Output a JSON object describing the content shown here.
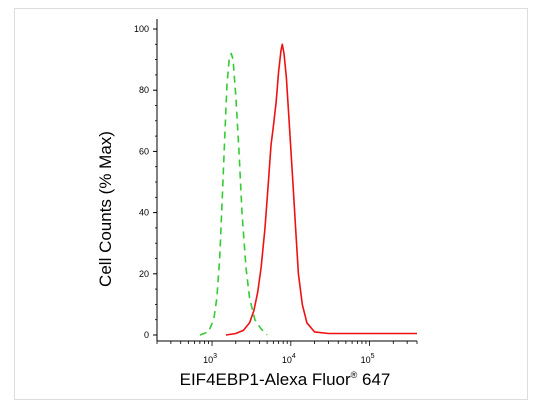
{
  "chart_data": {
    "type": "line",
    "xlabel": "EIF4EBP1-Alexa Fluor",
    "xlabel_sup": "®",
    "xlabel_suffix": " 647",
    "ylabel": "Cell Counts (% Max)",
    "ylim": [
      0,
      100
    ],
    "yticks": [
      "0",
      "20",
      "40",
      "60",
      "80",
      "100"
    ],
    "xscale": "log",
    "xticks": [
      {
        "base": "10",
        "exp": "3",
        "value": 1000
      },
      {
        "base": "10",
        "exp": "4",
        "value": 10000
      },
      {
        "base": "10",
        "exp": "5",
        "value": 100000
      }
    ],
    "grid": false,
    "series": [
      {
        "style": "dashed",
        "color": "#33cc33",
        "points": [
          [
            700,
            0
          ],
          [
            900,
            1
          ],
          [
            1050,
            5
          ],
          [
            1150,
            12
          ],
          [
            1250,
            25
          ],
          [
            1350,
            45
          ],
          [
            1450,
            65
          ],
          [
            1550,
            82
          ],
          [
            1650,
            90
          ],
          [
            1750,
            92
          ],
          [
            1850,
            90
          ],
          [
            2000,
            78
          ],
          [
            2200,
            60
          ],
          [
            2400,
            40
          ],
          [
            2700,
            22
          ],
          [
            3000,
            12
          ],
          [
            3500,
            5
          ],
          [
            4200,
            2
          ],
          [
            5000,
            0
          ]
        ]
      },
      {
        "style": "solid",
        "color": "#ee1111",
        "points": [
          [
            1500,
            0
          ],
          [
            2000,
            0.5
          ],
          [
            2500,
            1.5
          ],
          [
            3000,
            4
          ],
          [
            3400,
            8
          ],
          [
            3800,
            14
          ],
          [
            4200,
            22
          ],
          [
            4700,
            35
          ],
          [
            5200,
            50
          ],
          [
            5600,
            62
          ],
          [
            6000,
            68
          ],
          [
            6500,
            76
          ],
          [
            7000,
            86
          ],
          [
            7500,
            93
          ],
          [
            7800,
            95
          ],
          [
            8200,
            92
          ],
          [
            8800,
            84
          ],
          [
            9500,
            70
          ],
          [
            10500,
            52
          ],
          [
            11500,
            35
          ],
          [
            12500,
            20
          ],
          [
            14000,
            10
          ],
          [
            16000,
            4
          ],
          [
            20000,
            1
          ],
          [
            30000,
            0.5
          ],
          [
            60000,
            0.5
          ],
          [
            100000,
            0.5
          ],
          [
            400000,
            0.5
          ]
        ]
      }
    ]
  }
}
